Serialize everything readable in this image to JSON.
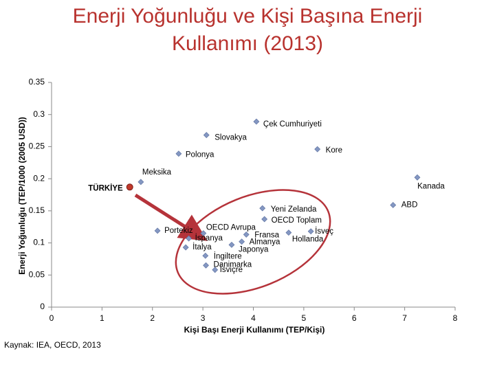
{
  "chart_data": {
    "type": "scatter",
    "title": "Enerji Yoğunluğu ve Kişi Başına Enerji Kullanımı (2013)",
    "xlabel": "Kişi Başı Enerji Kullanımı (TEP/Kişi)",
    "ylabel": "Enerji Yoğunluğu (TEP/1000 (2005 USD))",
    "source": "Kaynak: IEA, OECD, 2013",
    "xlim": [
      0,
      8
    ],
    "xticks": [
      0,
      1,
      2,
      3,
      4,
      5,
      6,
      7,
      8
    ],
    "ylim": [
      0,
      0.35
    ],
    "yticks": [
      0,
      0.05,
      0.1,
      0.15,
      0.2,
      0.25,
      0.3,
      0.35
    ],
    "series": [
      {
        "color": "#8497c2",
        "points": [
          {
            "label": "Çek Cumhuriyeti",
            "x": 4.06,
            "y": 0.289
          },
          {
            "label": "Slovakya",
            "x": 3.07,
            "y": 0.268
          },
          {
            "label": "Kore",
            "x": 5.27,
            "y": 0.246
          },
          {
            "label": "Polonya",
            "x": 2.52,
            "y": 0.239
          },
          {
            "label": "Meksika",
            "x": 1.77,
            "y": 0.195
          },
          {
            "label": "Kanada",
            "x": 7.25,
            "y": 0.202
          },
          {
            "label": "ABD",
            "x": 6.77,
            "y": 0.159
          },
          {
            "label": "Yeni Zelanda",
            "x": 4.18,
            "y": 0.154
          },
          {
            "label": "OECD Toplam",
            "x": 4.22,
            "y": 0.137
          },
          {
            "label": "Portekiz",
            "x": 2.1,
            "y": 0.119
          },
          {
            "label": "OECD Avrupa",
            "x": 3.01,
            "y": 0.115
          },
          {
            "label": "İsveç",
            "x": 5.14,
            "y": 0.118
          },
          {
            "label": "Fransa",
            "x": 3.86,
            "y": 0.113
          },
          {
            "label": "Hollanda",
            "x": 4.7,
            "y": 0.116
          },
          {
            "label": "İspanya",
            "x": 2.72,
            "y": 0.107
          },
          {
            "label": "Almanya",
            "x": 3.77,
            "y": 0.102
          },
          {
            "label": "İtalya",
            "x": 2.66,
            "y": 0.093
          },
          {
            "label": "Japonya",
            "x": 3.57,
            "y": 0.097
          },
          {
            "label": "İngiltere",
            "x": 3.05,
            "y": 0.08
          },
          {
            "label": "Danimarka",
            "x": 3.06,
            "y": 0.065
          },
          {
            "label": "İsviçre",
            "x": 3.24,
            "y": 0.058
          }
        ]
      },
      {
        "color": "#c0392b",
        "points": [
          {
            "label": "TÜRKİYE",
            "x": 1.55,
            "y": 0.187
          }
        ]
      }
    ]
  }
}
